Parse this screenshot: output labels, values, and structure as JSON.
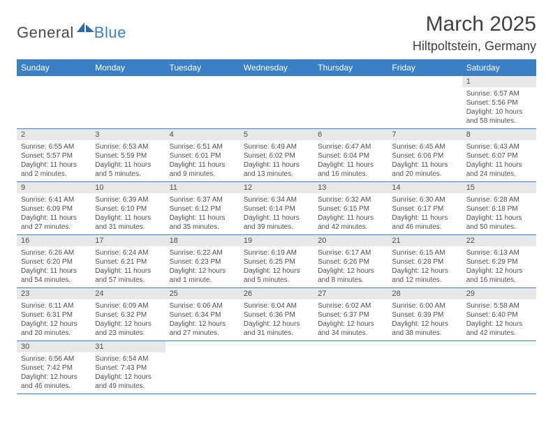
{
  "brand": {
    "general": "General",
    "blue": "Blue"
  },
  "header": {
    "title": "March 2025",
    "location": "Hiltpoltstein, Germany"
  },
  "colors": {
    "header_bg": "#3b7fc4",
    "header_fg": "#ffffff",
    "daynum_bg": "#e8e8e8",
    "border": "#3b7fc4",
    "text": "#505050"
  },
  "weekdays": [
    "Sunday",
    "Monday",
    "Tuesday",
    "Wednesday",
    "Thursday",
    "Friday",
    "Saturday"
  ],
  "weeks": [
    [
      null,
      null,
      null,
      null,
      null,
      null,
      {
        "n": "1",
        "sr": "Sunrise: 6:57 AM",
        "ss": "Sunset: 5:56 PM",
        "dl": "Daylight: 10 hours and 58 minutes."
      }
    ],
    [
      {
        "n": "2",
        "sr": "Sunrise: 6:55 AM",
        "ss": "Sunset: 5:57 PM",
        "dl": "Daylight: 11 hours and 2 minutes."
      },
      {
        "n": "3",
        "sr": "Sunrise: 6:53 AM",
        "ss": "Sunset: 5:59 PM",
        "dl": "Daylight: 11 hours and 5 minutes."
      },
      {
        "n": "4",
        "sr": "Sunrise: 6:51 AM",
        "ss": "Sunset: 6:01 PM",
        "dl": "Daylight: 11 hours and 9 minutes."
      },
      {
        "n": "5",
        "sr": "Sunrise: 6:49 AM",
        "ss": "Sunset: 6:02 PM",
        "dl": "Daylight: 11 hours and 13 minutes."
      },
      {
        "n": "6",
        "sr": "Sunrise: 6:47 AM",
        "ss": "Sunset: 6:04 PM",
        "dl": "Daylight: 11 hours and 16 minutes."
      },
      {
        "n": "7",
        "sr": "Sunrise: 6:45 AM",
        "ss": "Sunset: 6:06 PM",
        "dl": "Daylight: 11 hours and 20 minutes."
      },
      {
        "n": "8",
        "sr": "Sunrise: 6:43 AM",
        "ss": "Sunset: 6:07 PM",
        "dl": "Daylight: 11 hours and 24 minutes."
      }
    ],
    [
      {
        "n": "9",
        "sr": "Sunrise: 6:41 AM",
        "ss": "Sunset: 6:09 PM",
        "dl": "Daylight: 11 hours and 27 minutes."
      },
      {
        "n": "10",
        "sr": "Sunrise: 6:39 AM",
        "ss": "Sunset: 6:10 PM",
        "dl": "Daylight: 11 hours and 31 minutes."
      },
      {
        "n": "11",
        "sr": "Sunrise: 6:37 AM",
        "ss": "Sunset: 6:12 PM",
        "dl": "Daylight: 11 hours and 35 minutes."
      },
      {
        "n": "12",
        "sr": "Sunrise: 6:34 AM",
        "ss": "Sunset: 6:14 PM",
        "dl": "Daylight: 11 hours and 39 minutes."
      },
      {
        "n": "13",
        "sr": "Sunrise: 6:32 AM",
        "ss": "Sunset: 6:15 PM",
        "dl": "Daylight: 11 hours and 42 minutes."
      },
      {
        "n": "14",
        "sr": "Sunrise: 6:30 AM",
        "ss": "Sunset: 6:17 PM",
        "dl": "Daylight: 11 hours and 46 minutes."
      },
      {
        "n": "15",
        "sr": "Sunrise: 6:28 AM",
        "ss": "Sunset: 6:18 PM",
        "dl": "Daylight: 11 hours and 50 minutes."
      }
    ],
    [
      {
        "n": "16",
        "sr": "Sunrise: 6:26 AM",
        "ss": "Sunset: 6:20 PM",
        "dl": "Daylight: 11 hours and 54 minutes."
      },
      {
        "n": "17",
        "sr": "Sunrise: 6:24 AM",
        "ss": "Sunset: 6:21 PM",
        "dl": "Daylight: 11 hours and 57 minutes."
      },
      {
        "n": "18",
        "sr": "Sunrise: 6:22 AM",
        "ss": "Sunset: 6:23 PM",
        "dl": "Daylight: 12 hours and 1 minute."
      },
      {
        "n": "19",
        "sr": "Sunrise: 6:19 AM",
        "ss": "Sunset: 6:25 PM",
        "dl": "Daylight: 12 hours and 5 minutes."
      },
      {
        "n": "20",
        "sr": "Sunrise: 6:17 AM",
        "ss": "Sunset: 6:26 PM",
        "dl": "Daylight: 12 hours and 8 minutes."
      },
      {
        "n": "21",
        "sr": "Sunrise: 6:15 AM",
        "ss": "Sunset: 6:28 PM",
        "dl": "Daylight: 12 hours and 12 minutes."
      },
      {
        "n": "22",
        "sr": "Sunrise: 6:13 AM",
        "ss": "Sunset: 6:29 PM",
        "dl": "Daylight: 12 hours and 16 minutes."
      }
    ],
    [
      {
        "n": "23",
        "sr": "Sunrise: 6:11 AM",
        "ss": "Sunset: 6:31 PM",
        "dl": "Daylight: 12 hours and 20 minutes."
      },
      {
        "n": "24",
        "sr": "Sunrise: 6:09 AM",
        "ss": "Sunset: 6:32 PM",
        "dl": "Daylight: 12 hours and 23 minutes."
      },
      {
        "n": "25",
        "sr": "Sunrise: 6:06 AM",
        "ss": "Sunset: 6:34 PM",
        "dl": "Daylight: 12 hours and 27 minutes."
      },
      {
        "n": "26",
        "sr": "Sunrise: 6:04 AM",
        "ss": "Sunset: 6:36 PM",
        "dl": "Daylight: 12 hours and 31 minutes."
      },
      {
        "n": "27",
        "sr": "Sunrise: 6:02 AM",
        "ss": "Sunset: 6:37 PM",
        "dl": "Daylight: 12 hours and 34 minutes."
      },
      {
        "n": "28",
        "sr": "Sunrise: 6:00 AM",
        "ss": "Sunset: 6:39 PM",
        "dl": "Daylight: 12 hours and 38 minutes."
      },
      {
        "n": "29",
        "sr": "Sunrise: 5:58 AM",
        "ss": "Sunset: 6:40 PM",
        "dl": "Daylight: 12 hours and 42 minutes."
      }
    ],
    [
      {
        "n": "30",
        "sr": "Sunrise: 6:56 AM",
        "ss": "Sunset: 7:42 PM",
        "dl": "Daylight: 12 hours and 46 minutes."
      },
      {
        "n": "31",
        "sr": "Sunrise: 6:54 AM",
        "ss": "Sunset: 7:43 PM",
        "dl": "Daylight: 12 hours and 49 minutes."
      },
      null,
      null,
      null,
      null,
      null
    ]
  ]
}
